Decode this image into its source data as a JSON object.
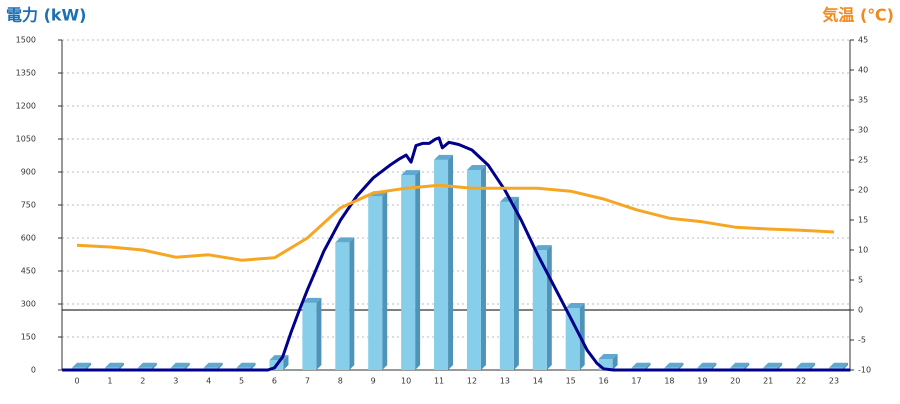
{
  "chart_data": {
    "type": "bar",
    "y_title": "電力 (kW)",
    "y2_title": "気温 (℃)",
    "categories": [
      "0",
      "1",
      "2",
      "3",
      "4",
      "5",
      "6",
      "7",
      "8",
      "9",
      "10",
      "11",
      "12",
      "13",
      "14",
      "15",
      "16",
      "17",
      "18",
      "19",
      "20",
      "21",
      "22",
      "23"
    ],
    "ylim": [
      0,
      1500
    ],
    "yticks": [
      0,
      150,
      300,
      450,
      600,
      750,
      900,
      1050,
      1200,
      1350,
      1500
    ],
    "y2lim": [
      -10,
      45
    ],
    "y2ticks": [
      -10,
      -5,
      0,
      5,
      10,
      15,
      20,
      25,
      30,
      35,
      40,
      45
    ],
    "grid": true,
    "series": [
      {
        "type": "bar",
        "color": "#87ceeb",
        "values": [
          10,
          10,
          10,
          10,
          10,
          10,
          45,
          305,
          580,
          790,
          886,
          955,
          909,
          764,
          545,
          282,
          50,
          10,
          10,
          10,
          10,
          10,
          10,
          10
        ]
      },
      {
        "type": "line",
        "color": "#00008b",
        "x": [
          -0.45,
          5.8,
          6,
          6.25,
          6.5,
          6.75,
          7,
          7.5,
          8,
          8.5,
          9,
          9.5,
          9.8,
          10,
          10.15,
          10.3,
          10.5,
          10.7,
          10.9,
          11,
          11.1,
          11.3,
          11.6,
          12,
          12.5,
          13,
          13.5,
          14,
          14.5,
          15,
          15.5,
          15.8,
          16,
          16.3,
          23.5
        ],
        "values": [
          0,
          0,
          10,
          60,
          170,
          270,
          364,
          540,
          680,
          790,
          873,
          930,
          960,
          977,
          945,
          1020,
          1030,
          1030,
          1050,
          1055,
          1010,
          1035,
          1025,
          1000,
          930,
          818,
          680,
          523,
          380,
          236,
          90,
          30,
          5,
          0,
          0
        ]
      },
      {
        "type": "line",
        "axis": "y2",
        "color": "#f5a623",
        "values": [
          10.8,
          10.5,
          10,
          8.8,
          9.2,
          8.3,
          8.7,
          12,
          17,
          19.5,
          20.3,
          20.8,
          20.3,
          20.3,
          20.3,
          19.8,
          18.5,
          16.7,
          15.3,
          14.7,
          13.8,
          13.5,
          13.3,
          13
        ]
      }
    ]
  }
}
